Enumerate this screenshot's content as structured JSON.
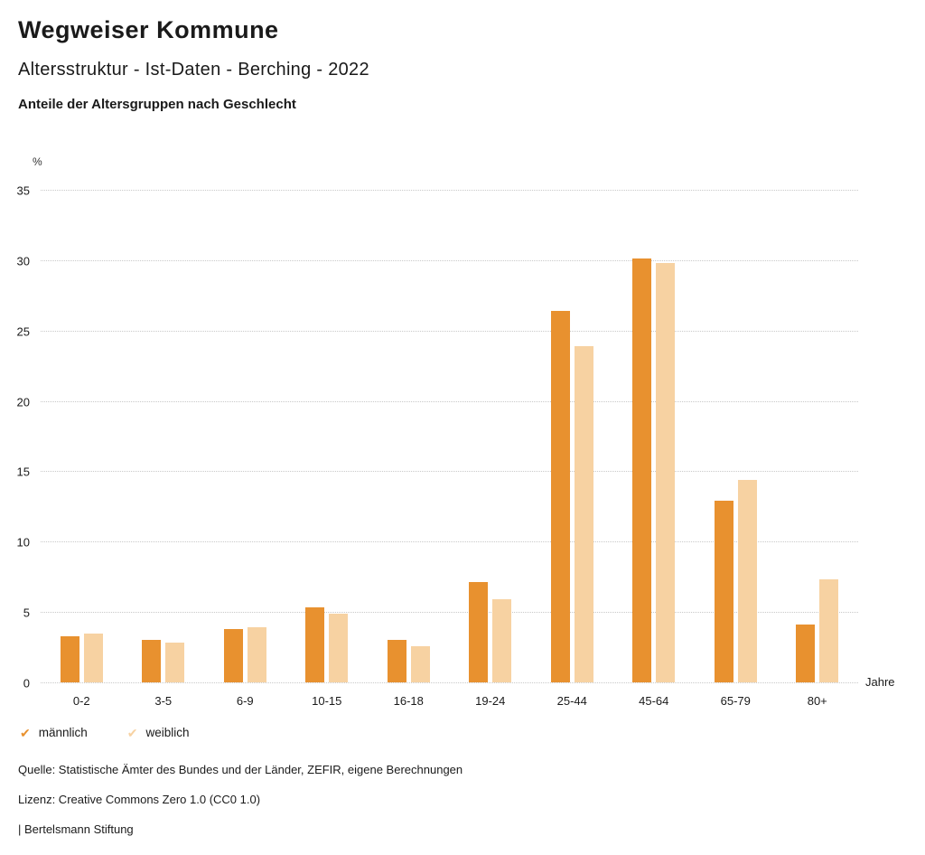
{
  "header": {
    "title": "Wegweiser Kommune",
    "subtitle": "Altersstruktur - Ist-Daten - Berching - 2022",
    "subsubtitle": "Anteile der Altersgruppen nach Geschlecht"
  },
  "chart_data": {
    "type": "bar",
    "title": "Anteile der Altersgruppen nach Geschlecht",
    "unit_label": "%",
    "x_unit_label": "Jahre",
    "categories": [
      "0-2",
      "3-5",
      "6-9",
      "10-15",
      "16-18",
      "19-24",
      "25-44",
      "45-64",
      "65-79",
      "80+"
    ],
    "series": [
      {
        "name": "männlich",
        "color": "#E8912F",
        "values": [
          3.3,
          3.0,
          3.8,
          5.3,
          3.0,
          7.1,
          26.4,
          30.1,
          12.9,
          4.1
        ]
      },
      {
        "name": "weiblich",
        "color": "#F7D2A2",
        "values": [
          3.5,
          2.8,
          3.9,
          4.9,
          2.6,
          5.9,
          23.9,
          29.8,
          14.4,
          7.3
        ]
      }
    ],
    "ylim": [
      0,
      35
    ],
    "yticks": [
      0,
      5,
      10,
      15,
      20,
      25,
      30,
      35
    ],
    "grid": true,
    "grid_style": "dotted",
    "legend_position": "bottom"
  },
  "legend": {
    "check_glyph": "✔"
  },
  "footer": {
    "source": "Quelle: Statistische Ämter des Bundes und der Länder, ZEFIR, eigene Berechnungen",
    "license": "Lizenz: Creative Commons Zero 1.0 (CC0 1.0)",
    "brand": "| Bertelsmann Stiftung"
  }
}
